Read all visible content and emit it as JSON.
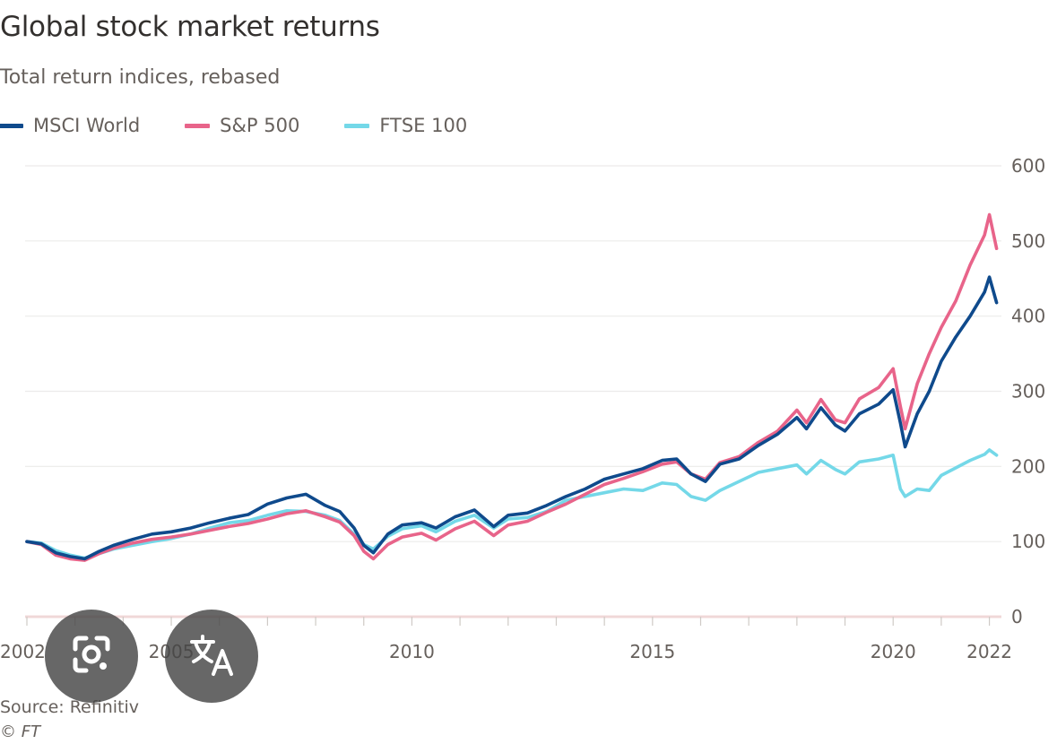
{
  "header": {
    "title": "Global stock market returns",
    "subtitle": "Total return indices, rebased"
  },
  "legend": {
    "items": [
      {
        "label": "MSCI World",
        "color": "#0f4a8c"
      },
      {
        "label": "S&P 500",
        "color": "#e8648a"
      },
      {
        "label": "FTSE 100",
        "color": "#74d8e8"
      }
    ]
  },
  "footer": {
    "source": "Source: Refinitiv",
    "credit": "© FT"
  },
  "overlay": {
    "lens_icon": "google-lens-icon",
    "translate_icon": "translate-icon"
  },
  "chart_data": {
    "type": "line",
    "title": "Global stock market returns",
    "subtitle": "Total return indices, rebased",
    "xlabel": "",
    "ylabel": "",
    "xlim": [
      2002,
      2022.25
    ],
    "ylim": [
      0,
      600
    ],
    "y_ticks": [
      0,
      100,
      200,
      300,
      400,
      500,
      600
    ],
    "x_ticks": [
      "2002",
      "2005",
      "2010",
      "2015",
      "2020",
      "2022"
    ],
    "y_axis_side": "right",
    "grid": "horizontal",
    "legend_position": "top-left",
    "series": [
      {
        "name": "MSCI World",
        "color": "#0f4a8c",
        "points": [
          [
            2002.0,
            100
          ],
          [
            2002.3,
            97
          ],
          [
            2002.6,
            85
          ],
          [
            2002.9,
            80
          ],
          [
            2003.2,
            77
          ],
          [
            2003.5,
            87
          ],
          [
            2003.8,
            95
          ],
          [
            2004.2,
            103
          ],
          [
            2004.6,
            110
          ],
          [
            2005.0,
            113
          ],
          [
            2005.4,
            118
          ],
          [
            2005.8,
            125
          ],
          [
            2006.2,
            131
          ],
          [
            2006.6,
            136
          ],
          [
            2007.0,
            150
          ],
          [
            2007.4,
            158
          ],
          [
            2007.8,
            163
          ],
          [
            2008.2,
            148
          ],
          [
            2008.5,
            140
          ],
          [
            2008.8,
            118
          ],
          [
            2009.0,
            95
          ],
          [
            2009.2,
            85
          ],
          [
            2009.5,
            110
          ],
          [
            2009.8,
            122
          ],
          [
            2010.2,
            125
          ],
          [
            2010.5,
            118
          ],
          [
            2010.9,
            133
          ],
          [
            2011.3,
            142
          ],
          [
            2011.7,
            120
          ],
          [
            2012.0,
            135
          ],
          [
            2012.4,
            138
          ],
          [
            2012.8,
            148
          ],
          [
            2013.2,
            160
          ],
          [
            2013.6,
            170
          ],
          [
            2014.0,
            183
          ],
          [
            2014.4,
            190
          ],
          [
            2014.8,
            197
          ],
          [
            2015.2,
            208
          ],
          [
            2015.5,
            210
          ],
          [
            2015.8,
            190
          ],
          [
            2016.1,
            180
          ],
          [
            2016.4,
            203
          ],
          [
            2016.8,
            210
          ],
          [
            2017.2,
            228
          ],
          [
            2017.6,
            243
          ],
          [
            2018.0,
            265
          ],
          [
            2018.2,
            250
          ],
          [
            2018.5,
            278
          ],
          [
            2018.8,
            255
          ],
          [
            2019.0,
            247
          ],
          [
            2019.3,
            270
          ],
          [
            2019.7,
            283
          ],
          [
            2020.0,
            302
          ],
          [
            2020.15,
            258
          ],
          [
            2020.25,
            226
          ],
          [
            2020.5,
            270
          ],
          [
            2020.75,
            300
          ],
          [
            2021.0,
            340
          ],
          [
            2021.3,
            372
          ],
          [
            2021.6,
            400
          ],
          [
            2021.9,
            432
          ],
          [
            2022.0,
            452
          ],
          [
            2022.15,
            418
          ]
        ]
      },
      {
        "name": "S&P 500",
        "color": "#e8648a",
        "points": [
          [
            2002.0,
            100
          ],
          [
            2002.3,
            96
          ],
          [
            2002.6,
            82
          ],
          [
            2002.9,
            77
          ],
          [
            2003.2,
            75
          ],
          [
            2003.5,
            84
          ],
          [
            2003.8,
            91
          ],
          [
            2004.2,
            98
          ],
          [
            2004.6,
            103
          ],
          [
            2005.0,
            106
          ],
          [
            2005.4,
            110
          ],
          [
            2005.8,
            115
          ],
          [
            2006.2,
            120
          ],
          [
            2006.6,
            124
          ],
          [
            2007.0,
            130
          ],
          [
            2007.4,
            137
          ],
          [
            2007.8,
            141
          ],
          [
            2008.2,
            133
          ],
          [
            2008.5,
            126
          ],
          [
            2008.8,
            108
          ],
          [
            2009.0,
            87
          ],
          [
            2009.2,
            77
          ],
          [
            2009.5,
            96
          ],
          [
            2009.8,
            106
          ],
          [
            2010.2,
            111
          ],
          [
            2010.5,
            102
          ],
          [
            2010.9,
            117
          ],
          [
            2011.3,
            127
          ],
          [
            2011.7,
            108
          ],
          [
            2012.0,
            122
          ],
          [
            2012.4,
            127
          ],
          [
            2012.8,
            139
          ],
          [
            2013.2,
            150
          ],
          [
            2013.6,
            163
          ],
          [
            2014.0,
            176
          ],
          [
            2014.4,
            184
          ],
          [
            2014.8,
            193
          ],
          [
            2015.2,
            203
          ],
          [
            2015.5,
            206
          ],
          [
            2015.8,
            190
          ],
          [
            2016.1,
            183
          ],
          [
            2016.4,
            205
          ],
          [
            2016.8,
            213
          ],
          [
            2017.2,
            232
          ],
          [
            2017.6,
            247
          ],
          [
            2018.0,
            275
          ],
          [
            2018.2,
            258
          ],
          [
            2018.5,
            289
          ],
          [
            2018.8,
            262
          ],
          [
            2019.0,
            258
          ],
          [
            2019.3,
            290
          ],
          [
            2019.7,
            305
          ],
          [
            2020.0,
            330
          ],
          [
            2020.15,
            280
          ],
          [
            2020.25,
            250
          ],
          [
            2020.5,
            310
          ],
          [
            2020.75,
            350
          ],
          [
            2021.0,
            385
          ],
          [
            2021.3,
            420
          ],
          [
            2021.6,
            468
          ],
          [
            2021.9,
            508
          ],
          [
            2022.0,
            535
          ],
          [
            2022.15,
            490
          ]
        ]
      },
      {
        "name": "FTSE 100",
        "color": "#74d8e8",
        "points": [
          [
            2002.0,
            100
          ],
          [
            2002.3,
            98
          ],
          [
            2002.6,
            88
          ],
          [
            2002.9,
            82
          ],
          [
            2003.2,
            78
          ],
          [
            2003.5,
            84
          ],
          [
            2003.8,
            90
          ],
          [
            2004.2,
            95
          ],
          [
            2004.6,
            100
          ],
          [
            2005.0,
            104
          ],
          [
            2005.4,
            110
          ],
          [
            2005.8,
            118
          ],
          [
            2006.2,
            125
          ],
          [
            2006.6,
            128
          ],
          [
            2007.0,
            135
          ],
          [
            2007.4,
            141
          ],
          [
            2007.8,
            140
          ],
          [
            2008.2,
            135
          ],
          [
            2008.5,
            128
          ],
          [
            2008.8,
            110
          ],
          [
            2009.0,
            96
          ],
          [
            2009.2,
            90
          ],
          [
            2009.5,
            107
          ],
          [
            2009.8,
            117
          ],
          [
            2010.2,
            121
          ],
          [
            2010.5,
            113
          ],
          [
            2010.9,
            127
          ],
          [
            2011.3,
            135
          ],
          [
            2011.7,
            118
          ],
          [
            2012.0,
            130
          ],
          [
            2012.4,
            132
          ],
          [
            2012.8,
            140
          ],
          [
            2013.2,
            155
          ],
          [
            2013.6,
            160
          ],
          [
            2014.0,
            165
          ],
          [
            2014.4,
            170
          ],
          [
            2014.8,
            168
          ],
          [
            2015.2,
            178
          ],
          [
            2015.5,
            176
          ],
          [
            2015.8,
            160
          ],
          [
            2016.1,
            155
          ],
          [
            2016.4,
            168
          ],
          [
            2016.8,
            180
          ],
          [
            2017.2,
            192
          ],
          [
            2017.6,
            197
          ],
          [
            2018.0,
            202
          ],
          [
            2018.2,
            190
          ],
          [
            2018.5,
            208
          ],
          [
            2018.8,
            196
          ],
          [
            2019.0,
            190
          ],
          [
            2019.3,
            206
          ],
          [
            2019.7,
            210
          ],
          [
            2020.0,
            215
          ],
          [
            2020.15,
            170
          ],
          [
            2020.25,
            160
          ],
          [
            2020.5,
            170
          ],
          [
            2020.75,
            168
          ],
          [
            2021.0,
            188
          ],
          [
            2021.3,
            198
          ],
          [
            2021.6,
            208
          ],
          [
            2021.9,
            216
          ],
          [
            2022.0,
            222
          ],
          [
            2022.15,
            215
          ]
        ]
      }
    ]
  }
}
